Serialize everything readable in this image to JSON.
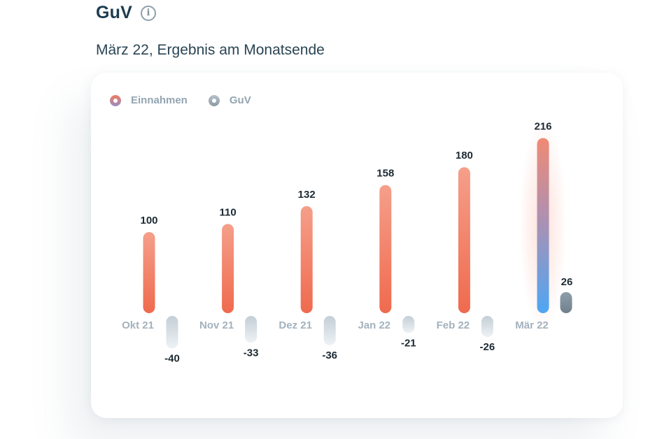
{
  "header": {
    "title": "GuV",
    "subtitle": "März 22, Ergebnis am Monatsende"
  },
  "colors": {
    "income_top": "#f59f8a",
    "income_bottom": "#ef6a4e",
    "highlight_top": "#f08a74",
    "highlight_bottom": "#4ea6f4",
    "guv_light": "#dfe6eb",
    "guv_dark": "#8e9ea9"
  },
  "chart_data": {
    "type": "bar",
    "categories": [
      "Okt 21",
      "Nov 21",
      "Dez 21",
      "Jan 22",
      "Feb 22",
      "Mär 22"
    ],
    "series": [
      {
        "name": "Einnahmen",
        "values": [
          100,
          110,
          132,
          158,
          180,
          216
        ]
      },
      {
        "name": "GuV",
        "values": [
          -40,
          -33,
          -36,
          -21,
          -26,
          26
        ]
      }
    ],
    "highlight_category": "Mär 22",
    "legend_position": "top-left",
    "grid": false
  }
}
